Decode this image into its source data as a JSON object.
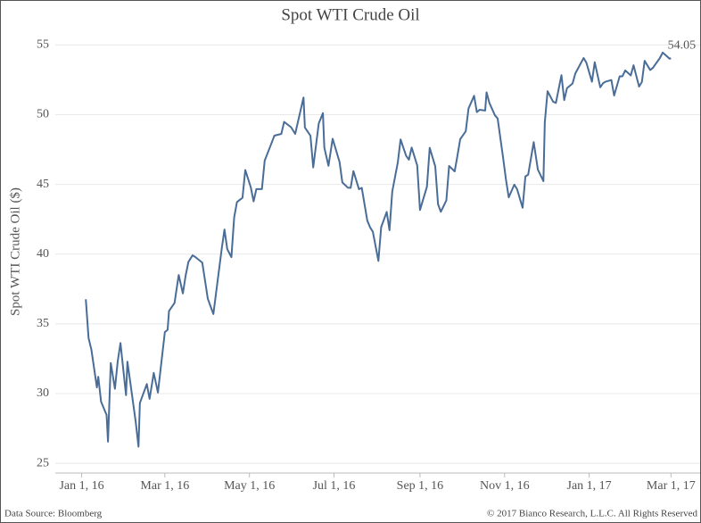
{
  "chart_data": {
    "type": "line",
    "title": "Spot WTI Crude Oil",
    "y_label": "Spot WTI Crude Oil ($)",
    "source": "Data Source: Bloomberg",
    "copyright": "© 2017 Bianco Research, L.L.C. All Rights Reserved",
    "color": "#4a6d98",
    "grid": true,
    "x": [
      "2016-01-04",
      "2016-01-06",
      "2016-01-08",
      "2016-01-12",
      "2016-01-13",
      "2016-01-15",
      "2016-01-19",
      "2016-01-20",
      "2016-01-22",
      "2016-01-25",
      "2016-01-27",
      "2016-01-29",
      "2016-02-02",
      "2016-02-03",
      "2016-02-05",
      "2016-02-09",
      "2016-02-11",
      "2016-02-12",
      "2016-02-17",
      "2016-02-19",
      "2016-02-22",
      "2016-02-25",
      "2016-03-01",
      "2016-03-03",
      "2016-03-04",
      "2016-03-08",
      "2016-03-10",
      "2016-03-11",
      "2016-03-14",
      "2016-03-16",
      "2016-03-18",
      "2016-03-21",
      "2016-03-23",
      "2016-03-28",
      "2016-04-01",
      "2016-04-05",
      "2016-04-07",
      "2016-04-11",
      "2016-04-13",
      "2016-04-15",
      "2016-04-18",
      "2016-04-20",
      "2016-04-22",
      "2016-04-26",
      "2016-04-28",
      "2016-05-02",
      "2016-05-04",
      "2016-05-06",
      "2016-05-10",
      "2016-05-12",
      "2016-05-16",
      "2016-05-19",
      "2016-05-24",
      "2016-05-26",
      "2016-05-31",
      "2016-06-03",
      "2016-06-07",
      "2016-06-09",
      "2016-06-10",
      "2016-06-14",
      "2016-06-16",
      "2016-06-20",
      "2016-06-23",
      "2016-06-24",
      "2016-06-27",
      "2016-06-30",
      "2016-07-05",
      "2016-07-07",
      "2016-07-11",
      "2016-07-13",
      "2016-07-15",
      "2016-07-19",
      "2016-07-21",
      "2016-07-25",
      "2016-07-27",
      "2016-07-29",
      "2016-08-02",
      "2016-08-04",
      "2016-08-08",
      "2016-08-10",
      "2016-08-12",
      "2016-08-16",
      "2016-08-18",
      "2016-08-22",
      "2016-08-24",
      "2016-08-26",
      "2016-08-30",
      "2016-09-01",
      "2016-09-06",
      "2016-09-08",
      "2016-09-12",
      "2016-09-14",
      "2016-09-16",
      "2016-09-20",
      "2016-09-22",
      "2016-09-26",
      "2016-09-28",
      "2016-09-30",
      "2016-10-04",
      "2016-10-06",
      "2016-10-10",
      "2016-10-12",
      "2016-10-14",
      "2016-10-18",
      "2016-10-19",
      "2016-10-21",
      "2016-10-25",
      "2016-10-27",
      "2016-10-31",
      "2016-11-02",
      "2016-11-04",
      "2016-11-08",
      "2016-11-10",
      "2016-11-14",
      "2016-11-16",
      "2016-11-18",
      "2016-11-22",
      "2016-11-25",
      "2016-11-29",
      "2016-11-30",
      "2016-12-02",
      "2016-12-06",
      "2016-12-08",
      "2016-12-12",
      "2016-12-14",
      "2016-12-16",
      "2016-12-20",
      "2016-12-22",
      "2016-12-28",
      "2016-12-30",
      "2017-01-03",
      "2017-01-05",
      "2017-01-09",
      "2017-01-11",
      "2017-01-13",
      "2017-01-17",
      "2017-01-19",
      "2017-01-23",
      "2017-01-25",
      "2017-01-27",
      "2017-01-31",
      "2017-02-02",
      "2017-02-06",
      "2017-02-08",
      "2017-02-10",
      "2017-02-14",
      "2017-02-16",
      "2017-02-21",
      "2017-02-23",
      "2017-02-28",
      "2017-03-01"
    ],
    "values": [
      36.76,
      33.97,
      33.16,
      30.44,
      31.2,
      29.42,
      28.46,
      26.55,
      32.19,
      30.34,
      32.3,
      33.62,
      29.88,
      32.28,
      30.86,
      27.96,
      26.19,
      29.32,
      30.68,
      29.62,
      31.48,
      30.07,
      34.4,
      34.57,
      35.92,
      36.5,
      37.84,
      38.5,
      37.18,
      38.46,
      39.44,
      39.91,
      39.79,
      39.39,
      36.79,
      35.7,
      37.26,
      40.36,
      41.76,
      40.36,
      39.78,
      42.63,
      43.73,
      44.04,
      46.03,
      44.78,
      43.78,
      44.66,
      44.66,
      46.7,
      47.72,
      48.49,
      48.62,
      49.48,
      49.1,
      48.62,
      50.36,
      51.23,
      49.07,
      48.49,
      46.21,
      49.37,
      50.11,
      47.64,
      46.33,
      48.27,
      46.6,
      45.14,
      44.76,
      44.75,
      45.95,
      44.65,
      44.75,
      42.4,
      41.92,
      41.6,
      39.51,
      41.93,
      43.02,
      41.71,
      44.49,
      46.58,
      48.22,
      47.05,
      46.77,
      47.64,
      46.35,
      43.16,
      44.83,
      47.62,
      46.29,
      43.58,
      43.03,
      43.85,
      46.32,
      45.93,
      47.05,
      48.24,
      48.81,
      50.44,
      51.35,
      50.18,
      50.35,
      50.29,
      51.6,
      50.85,
      49.96,
      49.72,
      46.86,
      45.34,
      44.07,
      44.98,
      44.66,
      43.32,
      45.57,
      45.69,
      48.03,
      46.06,
      45.23,
      49.44,
      51.68,
      50.93,
      50.84,
      52.83,
      51.04,
      51.9,
      52.23,
      52.95,
      54.06,
      53.72,
      52.36,
      53.76,
      51.96,
      52.25,
      52.37,
      52.48,
      51.37,
      52.75,
      52.75,
      53.17,
      52.81,
      53.54,
      52.01,
      52.34,
      53.86,
      53.2,
      53.36,
      54.06,
      54.45,
      54.01,
      54.05
    ],
    "xlim": [
      "2015-12-13",
      "2017-03-22"
    ],
    "xticks": [
      {
        "value": "2016-01-01",
        "label": "Jan 1, 16"
      },
      {
        "value": "2016-03-01",
        "label": "Mar 1, 16"
      },
      {
        "value": "2016-05-01",
        "label": "May 1, 16"
      },
      {
        "value": "2016-07-01",
        "label": "Jul 1, 16"
      },
      {
        "value": "2016-09-01",
        "label": "Sep 1, 16"
      },
      {
        "value": "2016-11-01",
        "label": "Nov 1, 16"
      },
      {
        "value": "2017-01-01",
        "label": "Jan 1, 17"
      },
      {
        "value": "2017-03-01",
        "label": "Mar 1, 17"
      }
    ],
    "ylim": [
      24.3,
      56.3
    ],
    "yticks": [
      25,
      30,
      35,
      40,
      45,
      50,
      55
    ]
  }
}
